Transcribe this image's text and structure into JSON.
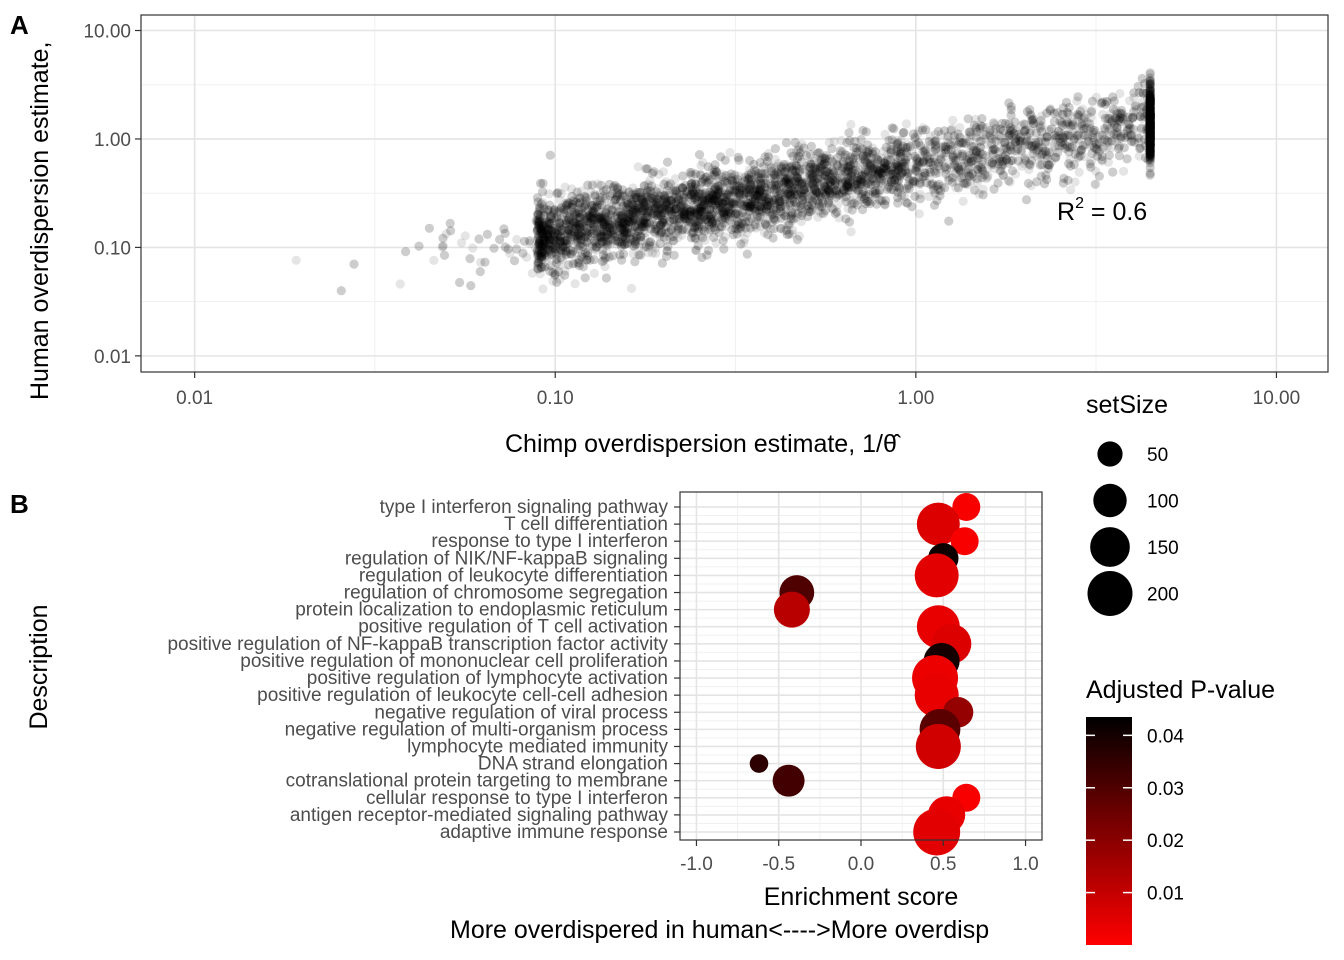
{
  "panel_a": {
    "tag": "A",
    "chart_data": {
      "type": "scatter",
      "xlabel": "Chimp overdispersion estimate, 1/θ̂",
      "ylabel": "Human overdispersion estimate,",
      "x_scale": "log10",
      "y_scale": "log10",
      "xlim": [
        0.0071,
        13.9
      ],
      "ylim": [
        0.0071,
        13.9
      ],
      "x_ticks": [
        "0.01",
        "0.10",
        "1.00",
        "10.00"
      ],
      "y_ticks": [
        "0.01",
        "0.10",
        "1.00",
        "10.00"
      ],
      "annotation": {
        "text_base": "R",
        "text_sup": "2",
        "text_rest": " =  0.6"
      },
      "point_color": "#000000",
      "point_alpha": 0.1,
      "grid": true,
      "trend": {
        "slope": 0.62,
        "intercept_log10": -0.25,
        "spread_log10": 0.17
      },
      "n_points": 6000
    }
  },
  "panel_b": {
    "tag": "B",
    "chart_data": {
      "type": "scatter",
      "xlabel": "Enrichment score",
      "xlabel2": "More overdispered in human<---->More overdisp",
      "ylabel": "Description",
      "xlim": [
        -1.1,
        1.1
      ],
      "x_ticks": [
        "-1.0",
        "-0.5",
        "0.0",
        "0.5",
        "1.0"
      ],
      "x_tick_values": [
        -1.0,
        -0.5,
        0.0,
        0.5,
        1.0
      ],
      "grid": true,
      "categories": [
        "type I interferon signaling pathway",
        "T cell differentiation",
        "response to type I interferon",
        "regulation of NIK/NF-kappaB signaling",
        "regulation of leukocyte differentiation",
        "regulation of chromosome segregation",
        "protein localization to endoplasmic reticulum",
        "positive regulation of T cell activation",
        "positive regulation of NF-kappaB transcription factor activity",
        "positive regulation of mononuclear cell proliferation",
        "positive regulation of lymphocyte activation",
        "positive regulation of leukocyte cell-cell adhesion",
        "negative regulation of viral process",
        "negative regulation of multi-organism process",
        "lymphocyte mediated immunity",
        "DNA strand elongation",
        "cotranslational protein targeting to membrane",
        "cellular response to type I interferon",
        "antigen receptor-mediated signaling pathway",
        "adaptive immune response"
      ],
      "enrichment": [
        0.64,
        0.47,
        0.63,
        0.5,
        0.46,
        -0.39,
        -0.42,
        0.47,
        0.55,
        0.49,
        0.45,
        0.46,
        0.59,
        0.48,
        0.47,
        -0.62,
        -0.44,
        0.64,
        0.52,
        0.46
      ],
      "set_size": [
        65,
        180,
        65,
        80,
        190,
        110,
        120,
        180,
        150,
        120,
        210,
        190,
        80,
        160,
        200,
        22,
        90,
        65,
        130,
        220
      ],
      "p_adjust": [
        0.001,
        0.006,
        0.001,
        0.041,
        0.005,
        0.03,
        0.012,
        0.004,
        0.006,
        0.04,
        0.003,
        0.004,
        0.018,
        0.028,
        0.008,
        0.036,
        0.032,
        0.001,
        0.004,
        0.005
      ],
      "size_legend": {
        "title": "setSize",
        "values": [
          50,
          100,
          150,
          200
        ],
        "labels": [
          "50",
          "100",
          "150",
          "200"
        ]
      },
      "color_legend": {
        "title": "Adjusted P-value",
        "low_color": "#ff0000",
        "high_color": "#000000",
        "range": [
          0.0,
          0.0435
        ],
        "ticks": [
          0.01,
          0.02,
          0.03,
          0.04
        ],
        "labels": [
          "0.01",
          "0.02",
          "0.03",
          "0.04"
        ]
      }
    }
  }
}
